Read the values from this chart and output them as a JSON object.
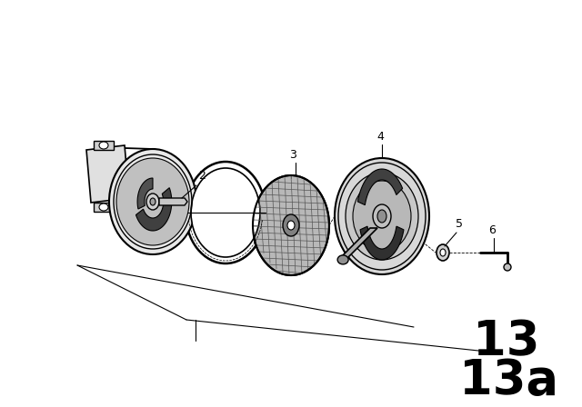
{
  "background_color": "#ffffff",
  "line_color": "#000000",
  "label_13": "13",
  "label_13a": "13a",
  "fig_width": 6.4,
  "fig_height": 4.48,
  "dpi": 100
}
